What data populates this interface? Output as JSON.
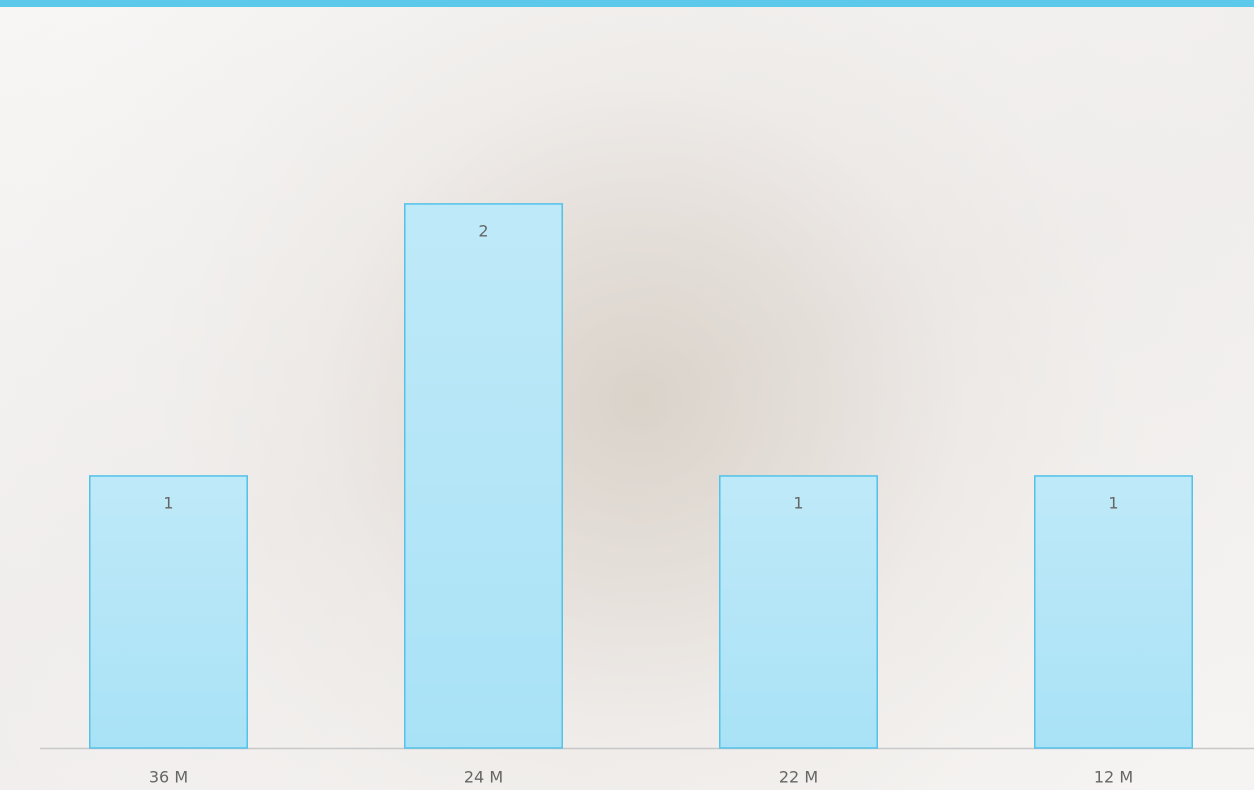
{
  "chart_data": {
    "type": "bar",
    "categories": [
      "36 M",
      "24 M",
      "22 M",
      "12 M"
    ],
    "values": [
      1,
      2,
      1,
      1
    ],
    "color": "#a9e2f6",
    "ylim": [
      0,
      2.72
    ]
  }
}
